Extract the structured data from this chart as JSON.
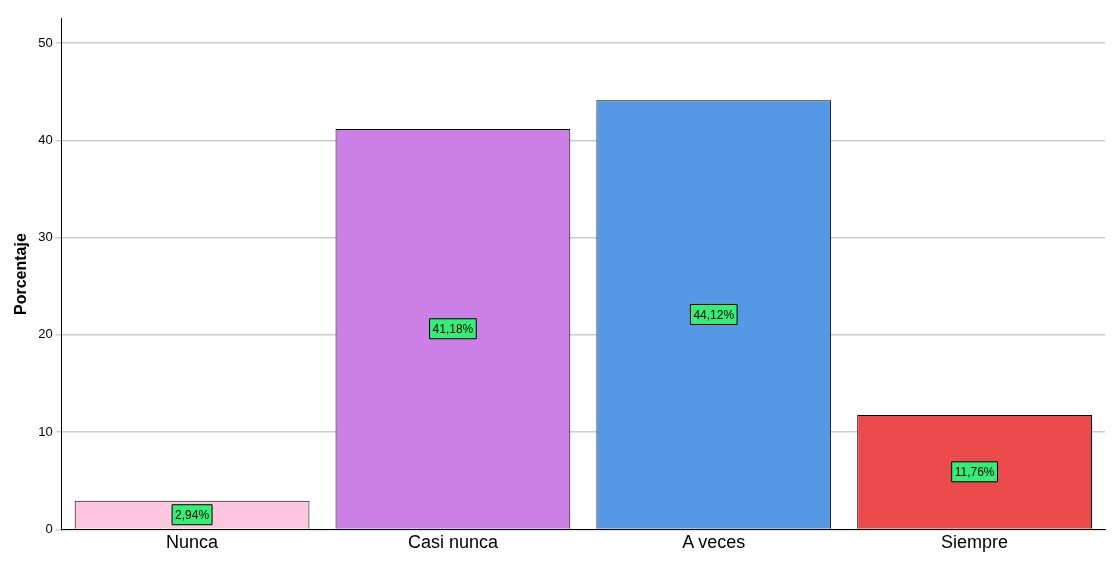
{
  "chart_data": {
    "type": "bar",
    "ylabel": "Porcentaje",
    "categories": [
      "Nunca",
      "Casi nunca",
      "A veces",
      "Siempre"
    ],
    "values": [
      2.94,
      41.18,
      44.12,
      11.76
    ],
    "colors": [
      "#ffc6e0",
      "#cc80e6",
      "#5599e6",
      "#ec4b4b"
    ],
    "value_labels": [
      "2,94%",
      "41,18%",
      "44,12%",
      "11,76%"
    ],
    "ylim": [
      0,
      52.5
    ],
    "yticks": [
      0,
      10,
      20,
      30,
      40,
      50
    ],
    "grid": "y"
  }
}
